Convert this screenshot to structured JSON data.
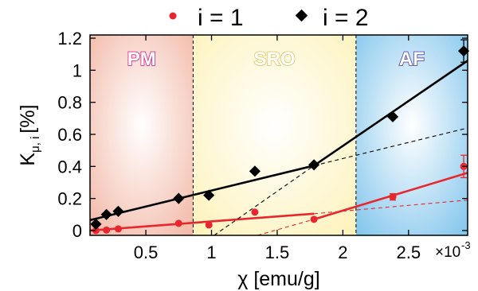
{
  "chart_data": {
    "type": "scatter",
    "xlabel": "χ [emu/g]",
    "ylabel": "K",
    "ylabel_sub": "μ, i",
    "ylabel_unit": "[%]",
    "x_multiplier": "×10",
    "x_multiplier_exp": "-3",
    "xlim": [
      0.075,
      2.95
    ],
    "ylim": [
      -0.03,
      1.22
    ],
    "x_ticks": [
      0.5,
      1,
      1.5,
      2,
      2.5
    ],
    "x_tick_labels": [
      "0.5",
      "1",
      "1.5",
      "2",
      "2.5"
    ],
    "y_ticks": [
      0,
      0.2,
      0.4,
      0.6,
      0.8,
      1,
      1.2
    ],
    "y_tick_labels": [
      "0",
      "0.2",
      "0.4",
      "0.6",
      "0.8",
      "1",
      "1.2"
    ],
    "regions": [
      {
        "label": "PM",
        "x_start": 0.075,
        "x_end": 0.86,
        "color": "#f2b6a4",
        "label_color": "#d6338a"
      },
      {
        "label": "SRO",
        "x_start": 0.86,
        "x_end": 2.1,
        "color": "#fdf2b8",
        "label_color": "#e6c96e"
      },
      {
        "label": "AF",
        "x_start": 2.1,
        "x_end": 2.95,
        "color": "#7fc4ec",
        "label_color": "#5a4fa8"
      }
    ],
    "series": [
      {
        "name": "i = 1",
        "color": "#e8262e",
        "marker": "circle",
        "x": [
          0.12,
          0.2,
          0.29,
          0.75,
          0.98,
          1.33,
          1.78,
          2.38,
          2.92
        ],
        "y": [
          0.0,
          0.003,
          0.01,
          0.045,
          0.035,
          0.115,
          0.07,
          0.21,
          0.4
        ],
        "err": [
          0,
          0,
          0,
          0,
          0,
          0,
          0,
          0.02,
          0.07
        ],
        "fit_lines": [
          {
            "x": [
              0.075,
              1.78
            ],
            "y": [
              0.0,
              0.105
            ],
            "style": "solid"
          },
          {
            "x": [
              1.78,
              2.95
            ],
            "y": [
              0.07,
              0.36
            ],
            "style": "solid"
          },
          {
            "x": [
              1.35,
              1.78
            ],
            "y": [
              -0.03,
              0.07
            ],
            "style": "dashed"
          },
          {
            "x": [
              1.78,
              2.95
            ],
            "y": [
              0.105,
              0.19
            ],
            "style": "dashed"
          }
        ]
      },
      {
        "name": "i = 2",
        "color": "#000000",
        "marker": "diamond",
        "x": [
          0.12,
          0.2,
          0.29,
          0.75,
          0.98,
          1.33,
          1.78,
          2.38,
          2.92
        ],
        "y": [
          0.04,
          0.1,
          0.12,
          0.2,
          0.22,
          0.37,
          0.41,
          0.71,
          1.12
        ],
        "err": [
          0,
          0,
          0,
          0,
          0,
          0,
          0,
          0,
          0.07
        ],
        "fit_lines": [
          {
            "x": [
              0.075,
              1.78
            ],
            "y": [
              0.065,
              0.405
            ],
            "style": "solid"
          },
          {
            "x": [
              1.78,
              2.95
            ],
            "y": [
              0.405,
              1.06
            ],
            "style": "solid"
          },
          {
            "x": [
              1.02,
              1.78
            ],
            "y": [
              -0.03,
              0.405
            ],
            "style": "dashed"
          },
          {
            "x": [
              1.78,
              2.95
            ],
            "y": [
              0.405,
              0.64
            ],
            "style": "dashed"
          }
        ]
      }
    ]
  }
}
